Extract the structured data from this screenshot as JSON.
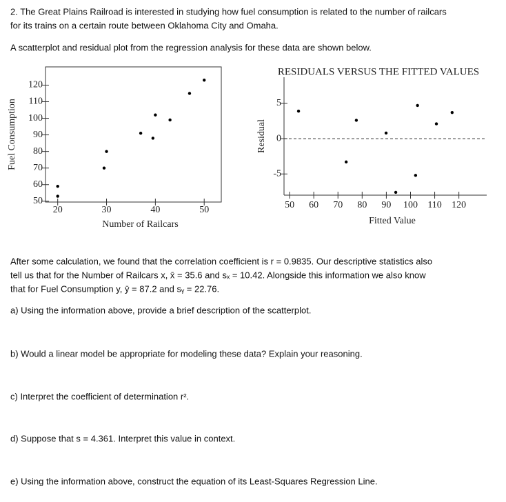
{
  "question": {
    "heading_lines": [
      "2. The Great Plains Railroad is interested in studying how fuel consumption is related to the number of railcars",
      "for its trains on a certain route between Oklahoma City and Omaha."
    ],
    "intro": "A scatterplot and residual plot from the regression analysis for these data are shown below.",
    "info_lines": [
      "After some calculation, we found that the correlation coefficient is r = 0.9835. Our descriptive statistics also",
      "tell us that for the Number of Railcars x, x̄ = 35.6 and sₓ = 10.42. Alongside this information we also know",
      "that for Fuel Consumption y, ȳ = 87.2 and sᵧ = 22.76."
    ],
    "parts": [
      "a) Using the information above, provide a brief description of the scatterplot.",
      "b) Would a linear model be appropriate for modeling these data? Explain your reasoning.",
      "c) Interpret the coefficient of determination r².",
      "d) Suppose that s = 4.361. Interpret this value in context.",
      "e) Using the information above, construct the equation of its Least-Squares Regression Line."
    ]
  },
  "chart_data": [
    {
      "type": "scatter",
      "x_label": "Number of Railcars",
      "y_label": "Fuel Consumption",
      "x": [
        20,
        20,
        29.5,
        30,
        37,
        39.5,
        40,
        43,
        47,
        50
      ],
      "values": [
        59,
        53,
        70,
        80,
        91,
        88,
        102,
        99,
        115,
        123
      ],
      "xlim": [
        17.5,
        53.5
      ],
      "ylim": [
        49.5,
        131
      ],
      "xticks": [
        20,
        30,
        40,
        50
      ],
      "yticks": [
        50,
        60,
        70,
        80,
        90,
        100,
        110,
        120
      ],
      "color": "#000000"
    },
    {
      "type": "scatter",
      "title": "RESIDUALS VERSUS THE FITTED VALUES",
      "x_label": "Fitted Value",
      "y_label": "Residual",
      "x": [
        53.7,
        73.4,
        77.6,
        89.9,
        93.9,
        102.1,
        102.9,
        110.7,
        117.2
      ],
      "values": [
        3.9,
        -3.3,
        2.6,
        0.8,
        -7.6,
        -5.2,
        4.7,
        2.1,
        3.7
      ],
      "xlim": [
        47.7,
        131.5
      ],
      "ylim": [
        -8,
        8.7
      ],
      "xticks": [
        50,
        60,
        70,
        80,
        90,
        100,
        110,
        120
      ],
      "yticks": [
        -5,
        0,
        5
      ],
      "hline": 0,
      "color": "#000000"
    }
  ]
}
